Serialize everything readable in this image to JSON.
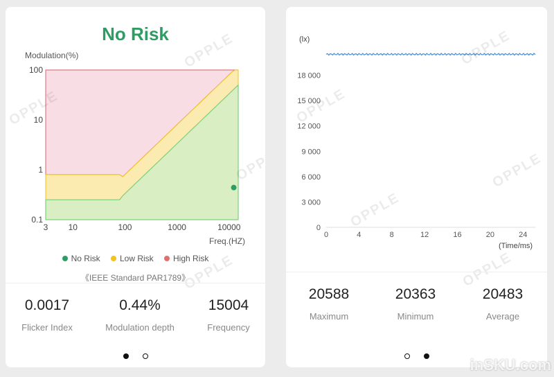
{
  "left_card": {
    "title": "No Risk",
    "chart_data": {
      "type": "area",
      "ylabel": "Modulation(%)",
      "xlabel": "Freq.(HZ)",
      "x_scale": "log",
      "y_scale": "log",
      "xlim": [
        3,
        15000
      ],
      "ylim": [
        0.1,
        100
      ],
      "x_ticks": [
        "3",
        "10",
        "100",
        "1000",
        "10000"
      ],
      "y_ticks": [
        "0.1",
        "1",
        "10",
        "100"
      ],
      "regions": [
        {
          "name": "No Risk",
          "color": "#d9efc3"
        },
        {
          "name": "Low Risk",
          "color": "#fcebb0"
        },
        {
          "name": "High Risk",
          "color": "#f9dde4"
        }
      ],
      "point": {
        "x": 15004,
        "y": 0.44
      }
    },
    "legend": [
      {
        "label": "No Risk",
        "color": "#2d9d64"
      },
      {
        "label": "Low Risk",
        "color": "#f2c21f"
      },
      {
        "label": "High Risk",
        "color": "#e07070"
      }
    ],
    "standard": "《IEEE Standard PAR1789》",
    "watermark": "OPPLE",
    "stats": [
      {
        "value": "0.0017",
        "label": "Flicker Index"
      },
      {
        "value": "0.44%",
        "label": "Modulation depth"
      },
      {
        "value": "15004",
        "label": "Frequency"
      }
    ],
    "pager": {
      "total": 2,
      "active": 0
    }
  },
  "right_card": {
    "chart_data": {
      "type": "line",
      "ylabel": "(lx)",
      "xlabel": "(Time/ms)",
      "ylim": [
        0,
        21000
      ],
      "xlim": [
        0,
        25.5
      ],
      "y_ticks": [
        "0",
        "3 000",
        "6 000",
        "9 000",
        "12 000",
        "15 000",
        "18 000"
      ],
      "x_ticks": [
        "0",
        "4",
        "8",
        "12",
        "16",
        "20",
        "24"
      ],
      "series": [
        {
          "approx_value": 20483,
          "min": 20363,
          "max": 20588,
          "color": "#4a90d9"
        }
      ]
    },
    "watermark": "OPPLE",
    "stats": [
      {
        "value": "20588",
        "label": "Maximum"
      },
      {
        "value": "20363",
        "label": "Minimum"
      },
      {
        "value": "20483",
        "label": "Average"
      }
    ],
    "pager": {
      "total": 2,
      "active": 1
    }
  },
  "brand": "inSKU.com"
}
